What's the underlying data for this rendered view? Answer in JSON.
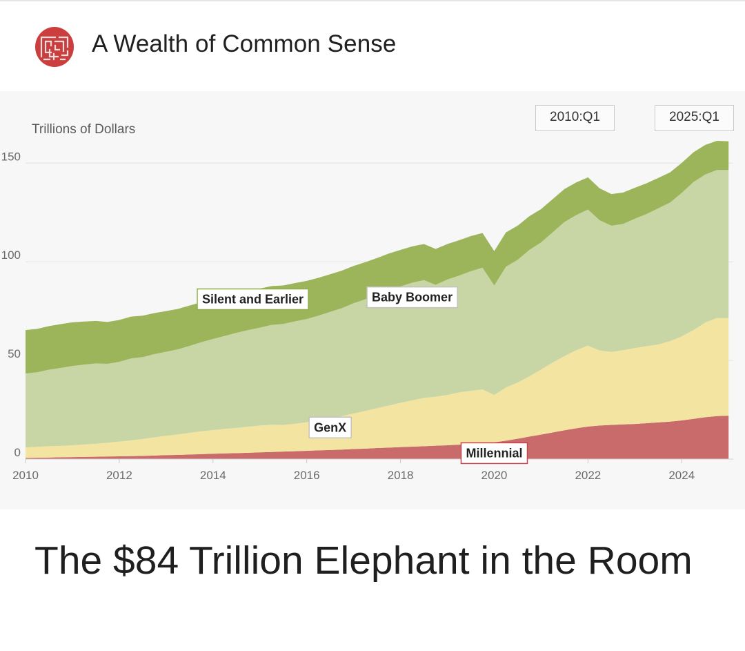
{
  "site": {
    "name": "A Wealth of Common Sense",
    "logo_icon": "maze-icon",
    "logo_color": "#cc3d3d"
  },
  "article": {
    "title": "The $84 Trillion Elephant in the Room"
  },
  "chart_data": {
    "type": "area",
    "stacked": true,
    "ylabel": "Trillions of Dollars",
    "xlabel": "",
    "ylim": [
      0,
      155
    ],
    "xlim": [
      2010,
      2025.1
    ],
    "yticks": [
      0,
      50,
      100,
      150
    ],
    "xticks": [
      2010,
      2012,
      2014,
      2016,
      2018,
      2020,
      2022,
      2024
    ],
    "grid": true,
    "range_selector": {
      "start": "2010:Q1",
      "end": "2025:Q1"
    },
    "x": [
      2010,
      2010.25,
      2010.5,
      2010.75,
      2011,
      2011.25,
      2011.5,
      2011.75,
      2012,
      2012.25,
      2012.5,
      2012.75,
      2013,
      2013.25,
      2013.5,
      2013.75,
      2014,
      2014.25,
      2014.5,
      2014.75,
      2015,
      2015.25,
      2015.5,
      2015.75,
      2016,
      2016.25,
      2016.5,
      2016.75,
      2017,
      2017.25,
      2017.5,
      2017.75,
      2018,
      2018.25,
      2018.5,
      2018.75,
      2019,
      2019.25,
      2019.5,
      2019.75,
      2020,
      2020.25,
      2020.5,
      2020.75,
      2021,
      2021.25,
      2021.5,
      2021.75,
      2022,
      2022.25,
      2022.5,
      2022.75,
      2023,
      2023.25,
      2023.5,
      2023.75,
      2024,
      2024.25,
      2024.5,
      2024.75,
      2025
    ],
    "series": [
      {
        "name": "Millennial",
        "color": "#c96b6b",
        "values": [
          0.6,
          0.7,
          0.8,
          0.9,
          1.0,
          1.1,
          1.2,
          1.3,
          1.4,
          1.5,
          1.6,
          1.8,
          2.0,
          2.1,
          2.3,
          2.5,
          2.7,
          2.9,
          3.0,
          3.2,
          3.4,
          3.6,
          3.8,
          4.0,
          4.2,
          4.4,
          4.6,
          4.8,
          5.1,
          5.3,
          5.6,
          5.8,
          6.1,
          6.3,
          6.5,
          6.8,
          7.0,
          7.3,
          7.6,
          8.0,
          8.5,
          9.3,
          10.3,
          11.4,
          12.4,
          13.5,
          14.6,
          15.6,
          16.5,
          17.0,
          17.3,
          17.6,
          17.8,
          18.2,
          18.6,
          19.0,
          19.6,
          20.4,
          21.2,
          21.8,
          22.0
        ]
      },
      {
        "name": "GenX",
        "color": "#f4e4a2",
        "values": [
          5.3,
          5.5,
          5.7,
          5.8,
          6.0,
          6.3,
          6.6,
          7.0,
          7.5,
          8.0,
          8.6,
          9.2,
          9.8,
          10.4,
          11.0,
          11.6,
          12.0,
          12.4,
          12.8,
          13.2,
          13.6,
          13.8,
          13.5,
          13.9,
          14.5,
          15.2,
          16.0,
          17.0,
          18.0,
          19.1,
          20.2,
          21.3,
          22.4,
          23.5,
          24.5,
          24.8,
          25.5,
          26.5,
          27.0,
          27.3,
          24.0,
          27.0,
          28.5,
          30.5,
          33.0,
          35.5,
          37.6,
          39.6,
          41.0,
          38.0,
          37.0,
          37.6,
          38.5,
          39.0,
          39.5,
          40.8,
          42.6,
          45.0,
          48.0,
          49.7,
          49.5
        ]
      },
      {
        "name": "Baby Boomer",
        "color": "#c8d5a4",
        "values": [
          37.5,
          37.8,
          38.8,
          39.5,
          40.2,
          40.5,
          40.7,
          40.0,
          40.4,
          41.5,
          41.5,
          42.2,
          42.6,
          43.1,
          44.1,
          45.1,
          46.2,
          47.1,
          48.2,
          49.0,
          49.6,
          50.6,
          51.2,
          51.9,
          52.3,
          53.1,
          54.0,
          54.7,
          55.9,
          56.6,
          57.4,
          58.5,
          59.0,
          59.6,
          59.7,
          56.7,
          58.5,
          59.2,
          60.6,
          61.7,
          55.5,
          61.2,
          62.2,
          64.1,
          64.4,
          66.0,
          68.0,
          68.5,
          69.0,
          66.0,
          64.0,
          64.0,
          65.5,
          67.0,
          69.0,
          70.2,
          72.7,
          75.0,
          75.0,
          75.0,
          75.0
        ]
      },
      {
        "name": "Silent and Earlier",
        "color": "#9cb55a",
        "values": [
          22.0,
          22.0,
          22.1,
          22.2,
          22.1,
          21.8,
          21.5,
          21.2,
          21.2,
          21.2,
          21.0,
          20.8,
          20.6,
          20.5,
          20.4,
          20.3,
          20.2,
          20.1,
          20.0,
          19.9,
          19.8,
          19.7,
          19.5,
          19.4,
          19.3,
          19.2,
          19.1,
          19.0,
          18.9,
          18.8,
          18.7,
          18.6,
          18.5,
          18.4,
          18.3,
          18.2,
          18.0,
          17.9,
          17.8,
          17.6,
          17.4,
          17.4,
          17.3,
          17.1,
          16.9,
          16.8,
          16.7,
          16.5,
          16.3,
          16.2,
          16.0,
          15.9,
          15.7,
          15.6,
          15.4,
          15.3,
          15.2,
          15.1,
          15.0,
          14.8,
          14.6
        ]
      }
    ],
    "annotations": [
      {
        "label": "Silent and Earlier",
        "x": 2014.85,
        "y": 81,
        "series": "Silent and Earlier",
        "border": "#8fae4a"
      },
      {
        "label": "Baby Boomer",
        "x": 2018.25,
        "y": 82,
        "series": "Baby Boomer",
        "border": "#c2c2c2"
      },
      {
        "label": "GenX",
        "x": 2016.5,
        "y": 16,
        "series": "GenX",
        "border": "#c2c2c2"
      },
      {
        "label": "Millennial",
        "x": 2020,
        "y": 3,
        "series": "Millennial",
        "border": "#c0454f"
      }
    ]
  }
}
